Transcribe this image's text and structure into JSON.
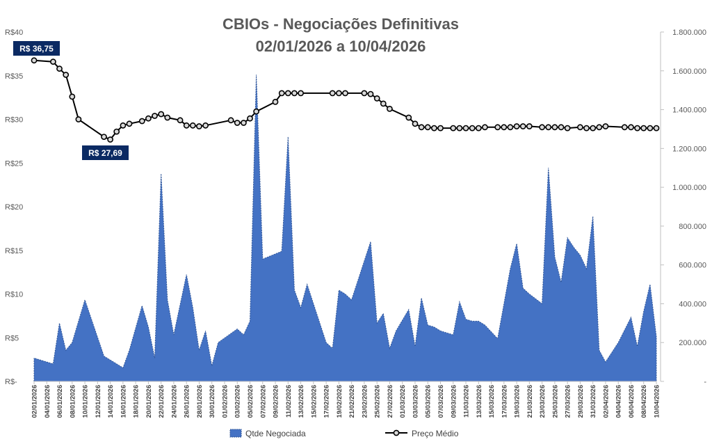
{
  "chart_data": {
    "type": "area",
    "title": "CBIOs - Negociações Definitivas",
    "subtitle": "02/01/2026 a 10/04/2026",
    "xlabel": "",
    "y_left_label": "",
    "y_right_label": "",
    "y_left_ticks": [
      "R$-",
      "R$5",
      "R$10",
      "R$15",
      "R$20",
      "R$25",
      "R$30",
      "R$35",
      "R$40"
    ],
    "y_left_range": [
      0,
      40
    ],
    "y_right_ticks": [
      "-",
      "200.000",
      "400.000",
      "600.000",
      "800.000",
      "1.000.000",
      "1.200.000",
      "1.400.000",
      "1.600.000",
      "1.800.000"
    ],
    "y_right_range": [
      0,
      1800000
    ],
    "x_tick_labels": [
      "02/01/2026",
      "04/01/2026",
      "06/01/2026",
      "08/01/2026",
      "10/01/2026",
      "12/01/2026",
      "14/01/2026",
      "16/01/2026",
      "18/01/2026",
      "20/01/2026",
      "22/01/2026",
      "24/01/2026",
      "26/01/2026",
      "28/01/2026",
      "30/01/2026",
      "01/02/2026",
      "03/02/2026",
      "05/02/2026",
      "07/02/2026",
      "09/02/2026",
      "11/02/2026",
      "13/02/2026",
      "15/02/2026",
      "17/02/2026",
      "19/02/2026",
      "21/02/2026",
      "23/02/2026",
      "25/02/2026",
      "27/02/2026",
      "01/03/2026",
      "03/03/2026",
      "05/03/2026",
      "07/03/2026",
      "09/03/2026",
      "11/03/2026",
      "13/03/2026",
      "15/03/2026",
      "17/03/2026",
      "19/03/2026",
      "21/03/2026",
      "23/03/2026",
      "25/03/2026",
      "27/03/2026",
      "29/03/2026",
      "31/03/2026",
      "02/04/2026",
      "04/04/2026",
      "06/04/2026",
      "08/04/2026",
      "10/04/2026"
    ],
    "x_range": [
      0,
      98
    ],
    "series": [
      {
        "name": "Qtde Negociada",
        "kind": "area",
        "axis": "right",
        "color": "#4472C4",
        "x": [
          0,
          3,
          4,
          5,
          6,
          8,
          11,
          12,
          14,
          15,
          17,
          18,
          19,
          20,
          21,
          22,
          24,
          25,
          26,
          27,
          28,
          29,
          32,
          33,
          34,
          35,
          36,
          39,
          40,
          41,
          42,
          43,
          46,
          47,
          48,
          49,
          50,
          53,
          54,
          55,
          56,
          57,
          59,
          60,
          61,
          62,
          63,
          64,
          66,
          67,
          68,
          69,
          70,
          71,
          73,
          74,
          75,
          76,
          77,
          78,
          80,
          81,
          82,
          83,
          84,
          85,
          86,
          87,
          88,
          89,
          90,
          91,
          92,
          94,
          95,
          96,
          97,
          98
        ],
        "y": [
          120000,
          90000,
          300000,
          160000,
          200000,
          420000,
          130000,
          110000,
          70000,
          160000,
          390000,
          280000,
          120000,
          1070000,
          420000,
          240000,
          550000,
          380000,
          160000,
          260000,
          80000,
          200000,
          270000,
          240000,
          310000,
          1580000,
          630000,
          670000,
          1260000,
          470000,
          380000,
          500000,
          200000,
          170000,
          470000,
          450000,
          420000,
          720000,
          300000,
          350000,
          170000,
          260000,
          370000,
          180000,
          430000,
          290000,
          280000,
          260000,
          240000,
          410000,
          320000,
          310000,
          310000,
          290000,
          220000,
          400000,
          580000,
          710000,
          480000,
          450000,
          400000,
          1100000,
          640000,
          510000,
          740000,
          690000,
          650000,
          580000,
          850000,
          160000,
          100000,
          150000,
          200000,
          330000,
          180000,
          360000,
          500000,
          230000
        ]
      },
      {
        "name": "Preço Médio",
        "kind": "line",
        "axis": "left",
        "color": "#000000",
        "x": [
          0,
          3,
          4,
          5,
          6,
          7,
          11,
          12,
          13,
          14,
          15,
          17,
          18,
          19,
          20,
          21,
          23,
          24,
          25,
          26,
          27,
          31,
          32,
          33,
          34,
          35,
          38,
          39,
          40,
          41,
          42,
          47,
          48,
          49,
          52,
          53,
          54,
          55,
          56,
          59,
          60,
          61,
          62,
          63,
          64,
          66,
          67,
          68,
          69,
          70,
          71,
          73,
          74,
          75,
          76,
          77,
          78,
          80,
          81,
          82,
          83,
          84,
          86,
          87,
          88,
          89,
          90,
          93,
          94,
          95,
          96,
          97,
          98
        ],
        "y": [
          36.75,
          36.6,
          35.8,
          35.1,
          32.6,
          30.0,
          28.0,
          27.69,
          28.6,
          29.3,
          29.5,
          29.8,
          30.1,
          30.4,
          30.6,
          30.2,
          29.9,
          29.3,
          29.3,
          29.2,
          29.3,
          29.9,
          29.6,
          29.6,
          30.1,
          30.9,
          32.0,
          33.0,
          33.0,
          33.0,
          33.0,
          33.0,
          33.0,
          33.0,
          33.0,
          32.9,
          32.4,
          31.8,
          31.2,
          30.2,
          29.5,
          29.1,
          29.1,
          29.0,
          29.0,
          29.0,
          29.0,
          29.0,
          29.0,
          29.0,
          29.1,
          29.1,
          29.1,
          29.1,
          29.2,
          29.2,
          29.2,
          29.1,
          29.1,
          29.1,
          29.1,
          29.0,
          29.1,
          29.0,
          29.0,
          29.1,
          29.2,
          29.1,
          29.1,
          29.0,
          29.0,
          29.0,
          29.0
        ]
      }
    ],
    "annotations": [
      {
        "text": "R$ 36,75",
        "series": "Preço Médio",
        "x": 0,
        "y": 36.75
      },
      {
        "text": "R$ 27,69",
        "series": "Preço Médio",
        "x": 12,
        "y": 27.69
      }
    ],
    "legend": {
      "position": "bottom",
      "items": [
        "Qtde Negociada",
        "Preço Médio"
      ]
    },
    "grid": false
  }
}
